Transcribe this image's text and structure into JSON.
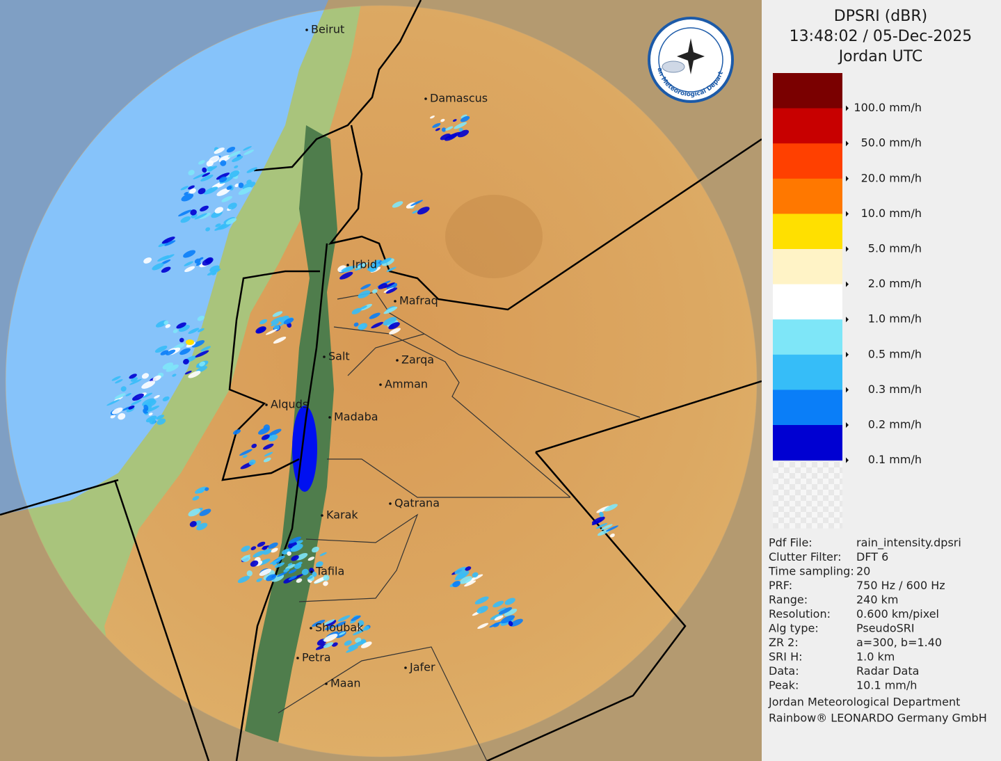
{
  "header": {
    "lines": [
      "DPSRI (dBR)",
      "13:48:02 / 05-Dec-2025",
      "Jordan UTC"
    ]
  },
  "logo": {
    "text": "Jordan Meteorological Department"
  },
  "map": {
    "cities": [
      "Beirut",
      "Damascus",
      "Irbid",
      "Mafraq",
      "Salt",
      "Zarqa",
      "Amman",
      "Alquds",
      "Madaba",
      "Qatrana",
      "Karak",
      "Tafila",
      "Shoubak",
      "Petra",
      "Jafer",
      "Maan"
    ]
  },
  "scale": {
    "colors": [
      "#7a0000",
      "#c80000",
      "#ff4000",
      "#ff7800",
      "#ffe000",
      "#fff3c6",
      "#ffffff",
      "#7ee6f8",
      "#36bdf8",
      "#0a7ef8",
      "#0000d2"
    ],
    "labels": [
      "100.0 mm/h",
      "50.0 mm/h",
      "20.0 mm/h",
      "10.0 mm/h",
      "5.0 mm/h",
      "2.0 mm/h",
      "1.0 mm/h",
      "0.5 mm/h",
      "0.3 mm/h",
      "0.2 mm/h",
      "0.1 mm/h"
    ]
  },
  "info": {
    "rows": [
      [
        "Pdf File:",
        "rain_intensity.dpsri"
      ],
      [
        "Clutter Filter:",
        "DFT 6"
      ],
      [
        "Time sampling:",
        "20"
      ],
      [
        "PRF:",
        "750 Hz / 600 Hz"
      ],
      [
        "Range:",
        "240 km"
      ],
      [
        "Resolution:",
        "0.600 km/pixel"
      ],
      [
        "Alg type:",
        "PseudoSRI"
      ],
      [
        "ZR 2:",
        "a=300, b=1.40"
      ],
      [
        "SRI H:",
        "1.0 km"
      ],
      [
        "Data:",
        "Radar Data"
      ],
      [
        "Peak:",
        "10.1 mm/h"
      ]
    ]
  },
  "footer": {
    "lines": [
      "Jordan Meteorological Department",
      "Rainbow® LEONARDO Germany GmbH"
    ]
  }
}
